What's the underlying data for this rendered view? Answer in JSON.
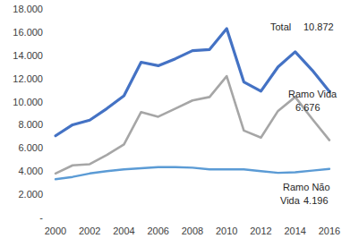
{
  "chart_data": {
    "type": "line",
    "x": [
      2000,
      2001,
      2002,
      2003,
      2004,
      2005,
      2006,
      2007,
      2008,
      2009,
      2010,
      2011,
      2012,
      2013,
      2014,
      2015,
      2016
    ],
    "series": [
      {
        "name": "Total",
        "color": "#4472c4",
        "values": [
          7050,
          8000,
          8400,
          9400,
          10500,
          13400,
          13100,
          13700,
          14400,
          14500,
          16300,
          11700,
          10900,
          13000,
          14300,
          12700,
          10872
        ],
        "value_labels": [
          null,
          null,
          null,
          null,
          null,
          null,
          null,
          null,
          null,
          null,
          null,
          null,
          null,
          null,
          null,
          null,
          "10.872"
        ]
      },
      {
        "name": "Ramo Vida",
        "color": "#a6a6a6",
        "values": [
          3800,
          4500,
          4600,
          5400,
          6300,
          9100,
          8700,
          9400,
          10100,
          10400,
          12200,
          7500,
          6900,
          9200,
          10400,
          8500,
          6676
        ],
        "value_labels": [
          null,
          null,
          null,
          null,
          null,
          null,
          null,
          null,
          null,
          null,
          null,
          null,
          null,
          null,
          null,
          null,
          "6.676"
        ]
      },
      {
        "name": "Ramo Não Vida",
        "color": "#5b9bd5",
        "values": [
          3300,
          3500,
          3800,
          4000,
          4150,
          4250,
          4350,
          4350,
          4300,
          4150,
          4150,
          4150,
          4000,
          3850,
          3900,
          4050,
          4196
        ],
        "value_labels": [
          null,
          null,
          null,
          null,
          null,
          null,
          null,
          null,
          null,
          null,
          null,
          null,
          null,
          null,
          null,
          null,
          "4.196"
        ]
      }
    ],
    "xlim": [
      2000,
      2016
    ],
    "xticks": [
      2000,
      2002,
      2004,
      2006,
      2008,
      2010,
      2012,
      2014,
      2016
    ],
    "ylim": [
      0,
      18000
    ],
    "yticks": [
      {
        "value": 0,
        "label": "-"
      },
      {
        "value": 2000,
        "label": "2.000"
      },
      {
        "value": 4000,
        "label": "4.000"
      },
      {
        "value": 6000,
        "label": "6.000"
      },
      {
        "value": 8000,
        "label": "8.000"
      },
      {
        "value": 10000,
        "label": "10.000"
      },
      {
        "value": 12000,
        "label": "12.000"
      },
      {
        "value": 14000,
        "label": "14.000"
      },
      {
        "value": 16000,
        "label": "16.000"
      },
      {
        "value": 18000,
        "label": "18.000"
      }
    ],
    "grid": false
  }
}
